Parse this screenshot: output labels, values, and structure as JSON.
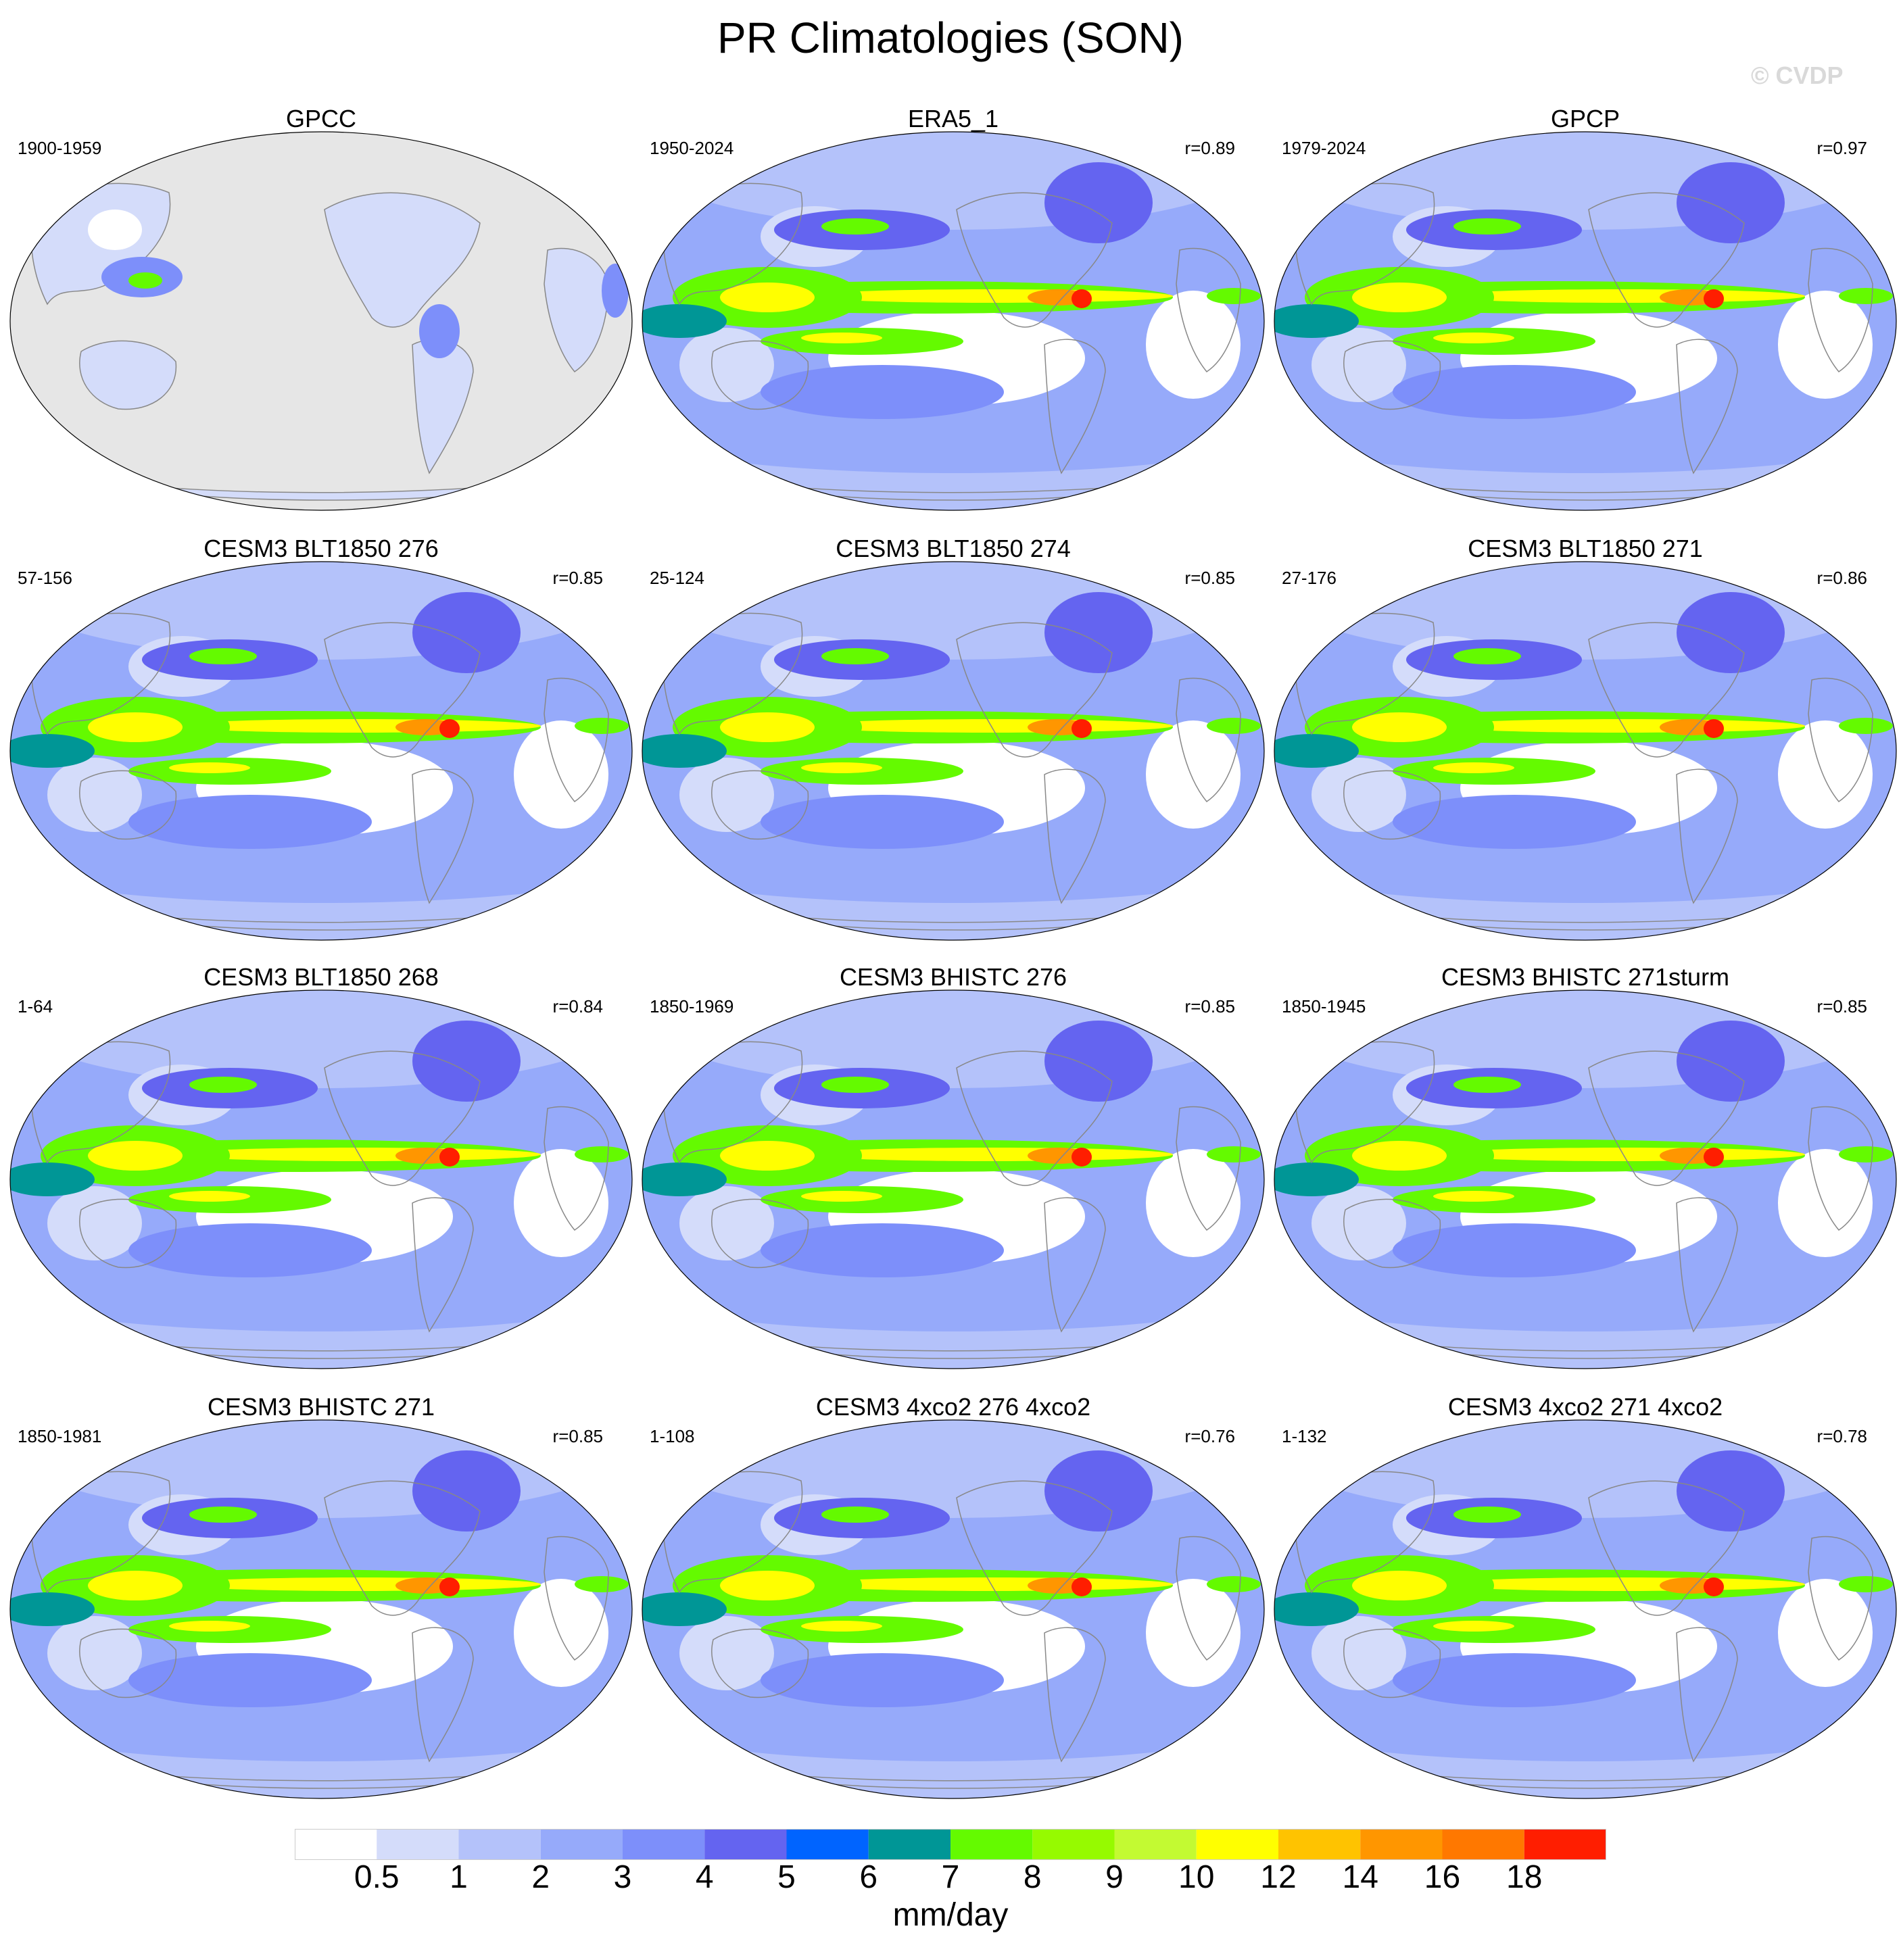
{
  "title": "PR Climatologies (SON)",
  "watermark": "© CVDP",
  "panels": [
    {
      "title": "GPCC",
      "years": "1900-1959",
      "r": "",
      "kind": "obs_land"
    },
    {
      "title": "ERA5_1",
      "years": "1950-2024",
      "r": "r=0.89",
      "kind": "obs"
    },
    {
      "title": "GPCP",
      "years": "1979-2024",
      "r": "r=0.97",
      "kind": "obs"
    },
    {
      "title": "CESM3 BLT1850 276",
      "years": "57-156",
      "r": "r=0.85",
      "kind": "model"
    },
    {
      "title": "CESM3 BLT1850 274",
      "years": "25-124",
      "r": "r=0.85",
      "kind": "model"
    },
    {
      "title": "CESM3 BLT1850 271",
      "years": "27-176",
      "r": "r=0.86",
      "kind": "model"
    },
    {
      "title": "CESM3 BLT1850 268",
      "years": "1-64",
      "r": "r=0.84",
      "kind": "model"
    },
    {
      "title": "CESM3 BHISTC 276",
      "years": "1850-1969",
      "r": "r=0.85",
      "kind": "model"
    },
    {
      "title": "CESM3 BHISTC 271sturm",
      "years": "1850-1945",
      "r": "r=0.85",
      "kind": "model"
    },
    {
      "title": "CESM3 BHISTC 271",
      "years": "1850-1981",
      "r": "r=0.85",
      "kind": "model"
    },
    {
      "title": "CESM3 4xco2 276 4xco2",
      "years": "1-108",
      "r": "r=0.76",
      "kind": "model"
    },
    {
      "title": "CESM3 4xco2 271 4xco2",
      "years": "1-132",
      "r": "r=0.78",
      "kind": "model"
    }
  ],
  "colorbar": {
    "levels": [
      "0.5",
      "1",
      "2",
      "3",
      "4",
      "5",
      "6",
      "7",
      "8",
      "9",
      "10",
      "12",
      "14",
      "16",
      "18"
    ],
    "colors": [
      "#ffffff",
      "#d4dcfa",
      "#b4c2fa",
      "#96aafa",
      "#7d8ffa",
      "#6464f0",
      "#0064ff",
      "#009696",
      "#64fa00",
      "#96fa00",
      "#c3fa32",
      "#ffff00",
      "#ffc300",
      "#ff9600",
      "#ff7800",
      "#ff1e00"
    ],
    "units": "mm/day"
  },
  "colors": {
    "missing": "#e6e6e6",
    "coastline": "#888888"
  }
}
